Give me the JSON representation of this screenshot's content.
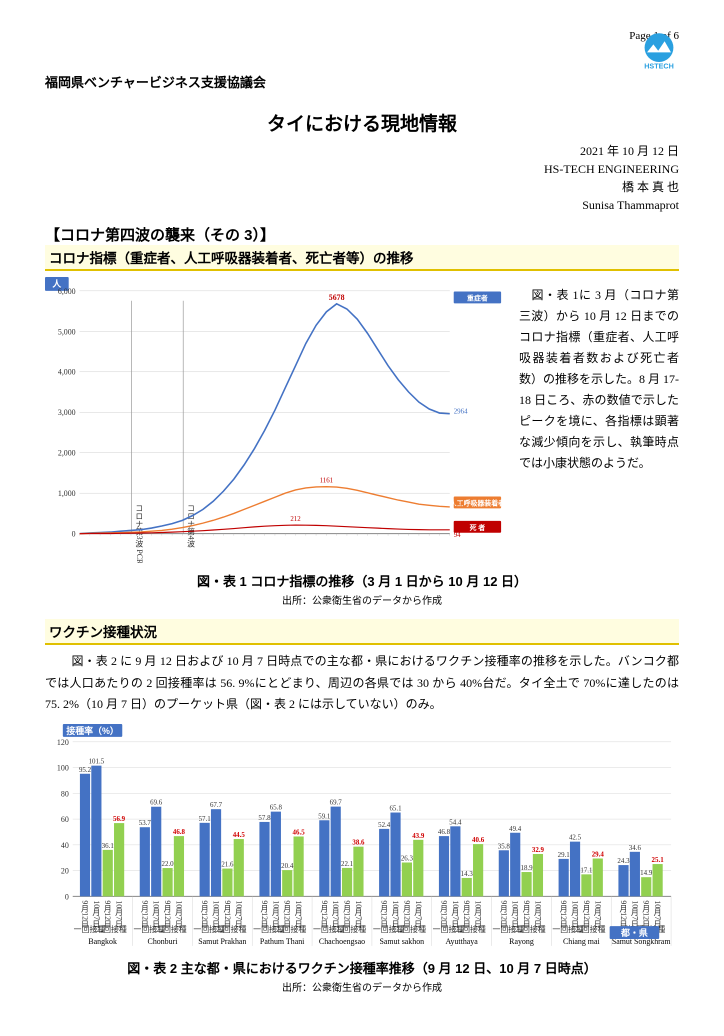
{
  "page_number": "Page 1 of 6",
  "logo_text": "HSTECH",
  "org": "福岡県ベンチャービジネス支援協議会",
  "title": "タイにおける現地情報",
  "date_block": [
    "2021 年 10 月 12 日",
    "HS-TECH ENGINEERING",
    "橋 本 真 也",
    "Sunisa Thammaprot"
  ],
  "section_main": "【コロナ第四波の襲来（その 3）】",
  "section_sub1": "コロナ指標（重症者、人工呼吸器装着者、死亡者等）の推移",
  "side_para": "　図・表 1に 3 月（コロナ第三波）から 10 月 12 日までのコロナ指標（重症者、人工呼吸器装着者数および死亡者数）の推移を示した。8 月 17-18 日ころ、赤の数値で示したピークを境に、各指標は顕著な減少傾向を示し、執筆時点では小康状態のようだ。",
  "fig1_caption": "図・表 1 コロナ指標の推移（3 月 1 日から 10 月 12 日）",
  "fig1_src": "出所：公衆衛生省のデータから作成",
  "section_sub2": "ワクチン接種状況",
  "body_para": "　図・表 2 に 9 月 12 日および 10 月 7 日時点での主な都・県におけるワクチン接種率の推移を示した。バンコク都では人口あたりの 2 回接種率は 56. 9%にとどまり、周辺の各県では 30 から 40%台だ。タイ全土で 70%に達したのは 75. 2%（10 月 7 日）のプーケット県（図・表 2 には示していない）のみ。",
  "fig2_caption": "図・表 2 主な都・県におけるワクチン接種率推移（9 月 12 日、10 月 7 日時点）",
  "fig2_src": "出所：公衆衛生省のデータから作成",
  "chart1": {
    "y_badge": "人",
    "ylim": [
      0,
      6000
    ],
    "yticks": [
      0,
      1000,
      2000,
      3000,
      4000,
      5000,
      6000
    ],
    "peak_label": "5678",
    "mid_label": "1161",
    "low_label": "212",
    "right_labels": [
      "2964",
      "660",
      "94"
    ],
    "legend_blue": "重症者",
    "legend_orange": "人工呼吸器装着者",
    "legend_red": "死 者",
    "colors": {
      "blue": "#4472c4",
      "orange": "#ed7d31",
      "red": "#c00000",
      "bg": "#ffffff",
      "grid": "#d0d0d0"
    },
    "vlines": [
      {
        "x": 0.14,
        "label": "コロナ第3波 PCR陽性者急増から"
      },
      {
        "x": 0.28,
        "label": "コロナ第4波"
      }
    ],
    "series": {
      "blue": [
        0,
        20,
        30,
        40,
        60,
        80,
        100,
        140,
        190,
        250,
        330,
        450,
        600,
        800,
        1050,
        1350,
        1700,
        2100,
        2550,
        3050,
        3600,
        4150,
        4700,
        5150,
        5480,
        5678,
        5550,
        5300,
        4950,
        4550,
        4150,
        3800,
        3500,
        3250,
        3080,
        2980,
        2964
      ],
      "orange": [
        0,
        10,
        15,
        20,
        25,
        35,
        45,
        60,
        80,
        110,
        150,
        200,
        260,
        330,
        410,
        500,
        600,
        700,
        800,
        900,
        1000,
        1080,
        1130,
        1155,
        1161,
        1150,
        1120,
        1070,
        1010,
        950,
        890,
        830,
        780,
        730,
        700,
        675,
        660
      ],
      "red": [
        0,
        2,
        4,
        6,
        9,
        12,
        16,
        22,
        29,
        38,
        48,
        60,
        74,
        90,
        108,
        128,
        148,
        168,
        185,
        198,
        207,
        212,
        210,
        205,
        197,
        186,
        174,
        161,
        148,
        136,
        124,
        114,
        106,
        100,
        96,
        94,
        94
      ]
    }
  },
  "chart2": {
    "y_badge": "接種率（%）",
    "x_badge": "都・県",
    "ylim": [
      0,
      120
    ],
    "yticks": [
      0,
      20,
      40,
      60,
      80,
      100,
      120
    ],
    "colors": {
      "blue": "#4472c4",
      "green": "#92d050",
      "grid": "#d8d8d8"
    },
    "provinces": [
      {
        "name": "Bangkok",
        "bars": [
          {
            "v": 95.2,
            "c": "blue"
          },
          {
            "v": 101.5,
            "c": "blue"
          },
          {
            "v": 36.1,
            "c": "green"
          },
          {
            "v": 56.9,
            "c": "green",
            "red": true
          }
        ]
      },
      {
        "name": "Chonburi",
        "bars": [
          {
            "v": 53.7,
            "c": "blue"
          },
          {
            "v": 69.6,
            "c": "blue"
          },
          {
            "v": 22.0,
            "c": "green"
          },
          {
            "v": 46.8,
            "c": "green",
            "red": true
          }
        ]
      },
      {
        "name": "Samut Prakhan",
        "bars": [
          {
            "v": 57.1,
            "c": "blue"
          },
          {
            "v": 67.7,
            "c": "blue"
          },
          {
            "v": 21.6,
            "c": "green"
          },
          {
            "v": 44.5,
            "c": "green",
            "red": true
          }
        ]
      },
      {
        "name": "Pathum Thani",
        "bars": [
          {
            "v": 57.8,
            "c": "blue"
          },
          {
            "v": 65.8,
            "c": "blue"
          },
          {
            "v": 20.4,
            "c": "green"
          },
          {
            "v": 46.5,
            "c": "green",
            "red": true
          }
        ]
      },
      {
        "name": "Chachoengsao",
        "bars": [
          {
            "v": 59.1,
            "c": "blue"
          },
          {
            "v": 69.7,
            "c": "blue"
          },
          {
            "v": 22.1,
            "c": "green"
          },
          {
            "v": 38.6,
            "c": "green",
            "red": true
          }
        ]
      },
      {
        "name": "Samut sakhon",
        "bars": [
          {
            "v": 52.4,
            "c": "blue"
          },
          {
            "v": 65.1,
            "c": "blue"
          },
          {
            "v": 26.3,
            "c": "green"
          },
          {
            "v": 43.9,
            "c": "green",
            "red": true
          }
        ]
      },
      {
        "name": "Ayutthaya",
        "bars": [
          {
            "v": 46.8,
            "c": "blue"
          },
          {
            "v": 54.4,
            "c": "blue"
          },
          {
            "v": 14.3,
            "c": "green"
          },
          {
            "v": 40.6,
            "c": "green",
            "red": true
          }
        ]
      },
      {
        "name": "Rayong",
        "bars": [
          {
            "v": 35.8,
            "c": "blue"
          },
          {
            "v": 49.4,
            "c": "blue"
          },
          {
            "v": 18.9,
            "c": "green"
          },
          {
            "v": 32.9,
            "c": "green",
            "red": true
          }
        ]
      },
      {
        "name": "Chiang mai",
        "bars": [
          {
            "v": 29.1,
            "c": "blue"
          },
          {
            "v": 42.5,
            "c": "blue"
          },
          {
            "v": 17.1,
            "c": "green"
          },
          {
            "v": 29.4,
            "c": "green",
            "red": true
          }
        ]
      },
      {
        "name": "Samut Songkhram",
        "bars": [
          {
            "v": 24.3,
            "c": "blue"
          },
          {
            "v": 34.6,
            "c": "blue"
          },
          {
            "v": 14.9,
            "c": "green"
          },
          {
            "v": 25.1,
            "c": "green",
            "red": true
          }
        ]
      }
    ],
    "sub_labels": [
      "一回接種",
      "二回接種"
    ]
  }
}
